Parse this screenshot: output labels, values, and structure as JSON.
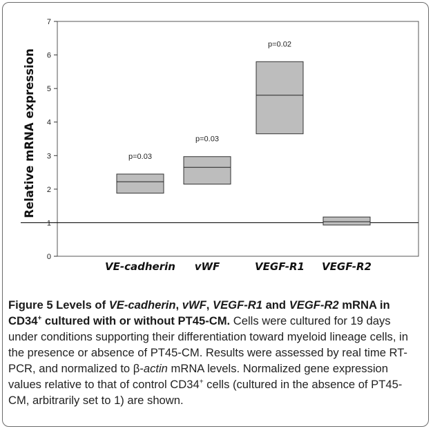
{
  "chart_data": {
    "type": "box",
    "ylabel": "Relative mRNA expression",
    "ylim": [
      0,
      7
    ],
    "yticks": [
      0,
      1,
      2,
      3,
      4,
      5,
      6,
      7
    ],
    "reference_line": 1,
    "categories": [
      "VE-cadherin",
      "vWF",
      "VEGF-R1",
      "VEGF-R2"
    ],
    "boxes": [
      {
        "category": "VE-cadherin",
        "low": 1.88,
        "median": 2.22,
        "high": 2.45,
        "pvalue": "p=0.03"
      },
      {
        "category": "vWF",
        "low": 2.15,
        "median": 2.65,
        "high": 2.97,
        "pvalue": "p=0.03"
      },
      {
        "category": "VEGF-R1",
        "low": 3.65,
        "median": 4.8,
        "high": 5.8,
        "pvalue": "p=0.02"
      },
      {
        "category": "VEGF-R2",
        "low": 0.93,
        "median": 1.03,
        "high": 1.17,
        "pvalue": ""
      }
    ],
    "colors": {
      "box_fill": "#bdbdbd",
      "box_stroke": "#333333"
    }
  },
  "caption": {
    "figure_label": "Figure 5",
    "title_1": " Levels of ",
    "gene_1": "VE-cadherin",
    "sep_1": ", ",
    "gene_2": "vWF",
    "sep_2": ", ",
    "gene_3": "VEGF-R1",
    "title_2": " and ",
    "gene_4": "VEGF-R2",
    "title_3": " mRNA in CD34",
    "sup_1": "+",
    "title_4": " cultured with or without PT45-CM.",
    "body_1": " Cells were cultured for 19 days under conditions supporting their differentiation toward myeloid lineage cells, in the presence or absence of PT45-CM. Results were assessed by real time RT-PCR, and normalized to β-",
    "body_actin": "actin",
    "body_2": " mRNA levels. Normalized gene expression values relative to that of control CD34",
    "sup_2": "+",
    "body_3": " cells (cultured in the absence of PT45-CM, arbitrarily set to 1) are shown."
  }
}
